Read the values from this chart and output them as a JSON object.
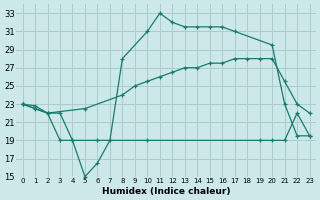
{
  "xlabel": "Humidex (Indice chaleur)",
  "bg_color": "#cce8e8",
  "grid_color": "#aacccc",
  "line_color": "#1a7a6e",
  "xlim": [
    -0.5,
    23.5
  ],
  "ylim": [
    15,
    34
  ],
  "xticks": [
    0,
    1,
    2,
    3,
    4,
    5,
    6,
    7,
    8,
    9,
    10,
    11,
    12,
    13,
    14,
    15,
    16,
    17,
    18,
    19,
    20,
    21,
    22,
    23
  ],
  "yticks": [
    15,
    17,
    19,
    21,
    23,
    25,
    27,
    29,
    31,
    33
  ],
  "series": [
    {
      "x": [
        0,
        1,
        2,
        3,
        4,
        5,
        6,
        7,
        8,
        10,
        11,
        12,
        13,
        14,
        15,
        16,
        17,
        20,
        21,
        22,
        23
      ],
      "y": [
        23,
        22.8,
        22,
        19,
        19,
        15,
        16.5,
        19,
        28,
        31,
        33,
        32,
        31.5,
        31.5,
        31.5,
        31.5,
        31,
        29.5,
        23,
        19.5,
        19.5
      ]
    },
    {
      "x": [
        0,
        2,
        5,
        8,
        9,
        10,
        11,
        12,
        13,
        14,
        15,
        16,
        17,
        18,
        19,
        20,
        21,
        22,
        23
      ],
      "y": [
        23,
        22,
        22.5,
        24,
        25,
        25.5,
        26,
        26.5,
        27,
        27,
        27.5,
        27.5,
        28,
        28,
        28,
        28,
        25.5,
        23,
        22
      ]
    },
    {
      "x": [
        0,
        1,
        2,
        3,
        4,
        6,
        10,
        19,
        20,
        21,
        22,
        23
      ],
      "y": [
        23,
        22.5,
        22,
        22,
        19,
        19,
        19,
        19,
        19,
        19,
        22,
        19.5
      ]
    }
  ]
}
